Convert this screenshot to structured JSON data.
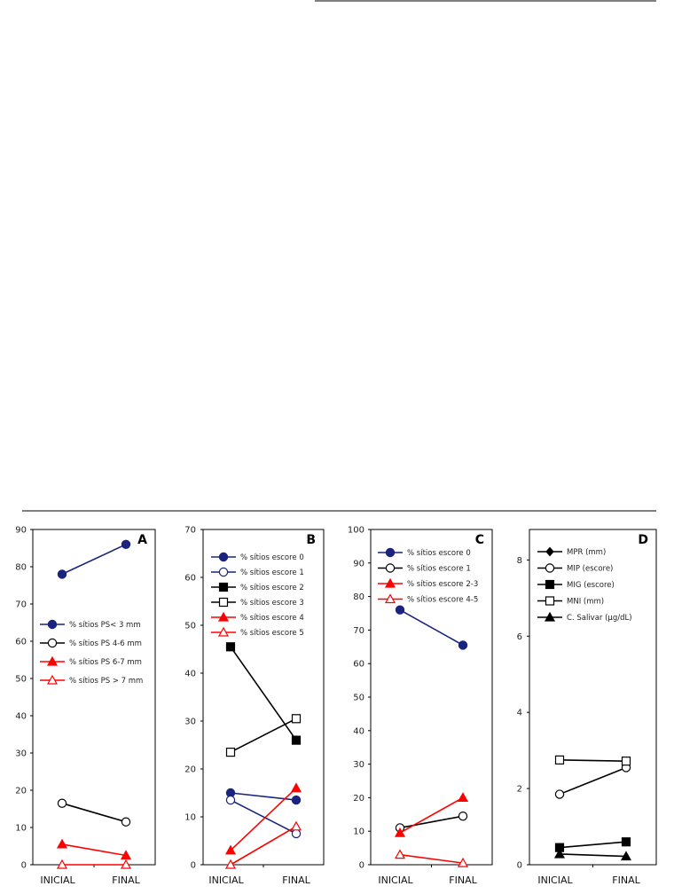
{
  "chart_data": [
    {
      "type": "line",
      "panel_letter": "A",
      "categories": [
        "INICIAL",
        "FINAL"
      ],
      "ylim": [
        0,
        90
      ],
      "yticks": [
        0,
        10,
        20,
        30,
        40,
        50,
        60,
        70,
        80,
        90
      ],
      "series": [
        {
          "name": "% sítios PS< 3 mm",
          "values": [
            78,
            86
          ],
          "color": "#1a237e",
          "marker": "filled-circle"
        },
        {
          "name": "% sítios PS 4-6 mm",
          "values": [
            16.5,
            11.5
          ],
          "color": "#000000",
          "marker": "open-circle"
        },
        {
          "name": "% sítios PS 6-7 mm",
          "values": [
            5.5,
            2.5
          ],
          "color": "#ff0000",
          "marker": "filled-triangle"
        },
        {
          "name": "% sítios PS > 7 mm",
          "values": [
            0,
            0
          ],
          "color": "#ff0000",
          "marker": "open-triangle"
        }
      ]
    },
    {
      "type": "line",
      "panel_letter": "B",
      "categories": [
        "INICIAL",
        "FINAL"
      ],
      "ylim": [
        0,
        70
      ],
      "yticks": [
        0,
        10,
        20,
        30,
        40,
        50,
        60,
        70
      ],
      "series": [
        {
          "name": "% sítios escore 0",
          "values": [
            15,
            13.5
          ],
          "color": "#1a237e",
          "marker": "filled-circle"
        },
        {
          "name": "% sítios escore 1",
          "values": [
            13.5,
            6.5
          ],
          "color": "#1a237e",
          "marker": "open-circle"
        },
        {
          "name": "% sítios escore 2",
          "values": [
            45.5,
            26
          ],
          "color": "#000000",
          "marker": "filled-square"
        },
        {
          "name": "% sítios escore 3",
          "values": [
            23.5,
            30.5
          ],
          "color": "#000000",
          "marker": "open-square"
        },
        {
          "name": "% sítios escore 4",
          "values": [
            3,
            16
          ],
          "color": "#ff0000",
          "marker": "filled-triangle"
        },
        {
          "name": "% sítios escore 5",
          "values": [
            0,
            8
          ],
          "color": "#ff0000",
          "marker": "open-triangle"
        }
      ]
    },
    {
      "type": "line",
      "panel_letter": "C",
      "categories": [
        "INICIAL",
        "FINAL"
      ],
      "ylim": [
        0,
        100
      ],
      "yticks": [
        0,
        10,
        20,
        30,
        40,
        50,
        60,
        70,
        80,
        90,
        100
      ],
      "series": [
        {
          "name": "% sítios escore 0",
          "values": [
            76,
            65.5
          ],
          "color": "#1a237e",
          "marker": "filled-circle"
        },
        {
          "name": "% sítios escore 1",
          "values": [
            11,
            14.5
          ],
          "color": "#000000",
          "marker": "open-circle"
        },
        {
          "name": "% sítios escore 2-3",
          "values": [
            9.5,
            20
          ],
          "color": "#ff0000",
          "marker": "filled-triangle"
        },
        {
          "name": "% sítios escore 4-5",
          "values": [
            3,
            0.5
          ],
          "color": "#ff0000",
          "marker": "open-triangle"
        }
      ]
    },
    {
      "type": "line",
      "panel_letter": "D",
      "categories": [
        "INICIAL",
        "FINAL"
      ],
      "ylim": [
        0,
        8.8
      ],
      "yticks": [
        0,
        2,
        4,
        6,
        8
      ],
      "series": [
        {
          "name": "MPR (mm)",
          "values": [
            null,
            null
          ],
          "color": "#000000",
          "marker": "filled-diamond"
        },
        {
          "name": "MIP (escore)",
          "values": [
            1.85,
            2.55
          ],
          "color": "#000000",
          "marker": "open-circle"
        },
        {
          "name": "MIG (escore)",
          "values": [
            0.45,
            0.6
          ],
          "color": "#000000",
          "marker": "filled-square"
        },
        {
          "name": "MNI (mm)",
          "values": [
            2.75,
            2.72
          ],
          "color": "#000000",
          "marker": "open-square"
        },
        {
          "name": "C. Salivar (µg/dL)",
          "values": [
            0.28,
            0.22
          ],
          "color": "#000000",
          "marker": "filled-triangle"
        }
      ]
    }
  ]
}
